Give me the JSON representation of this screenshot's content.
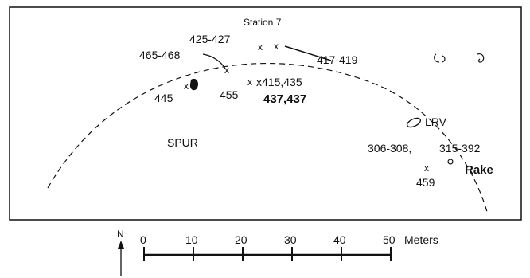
{
  "map": {
    "station_label": "Station 7",
    "area_label": "SPUR",
    "vehicle_label": "LRV",
    "rake_label": "Rake",
    "samples": {
      "s425_427": "425-427",
      "s465_468": "465-468",
      "s417_419": "417-419",
      "s445": "445",
      "s455": "455",
      "s415_435": "x415,435",
      "s437": "437,437",
      "s306_308": "306-308,",
      "s315_392": "315-392",
      "s459": "459"
    }
  },
  "scale": {
    "north_label": "N",
    "unit_label": "Meters",
    "ticks": [
      "0",
      "10",
      "20",
      "30",
      "40",
      "50"
    ]
  }
}
